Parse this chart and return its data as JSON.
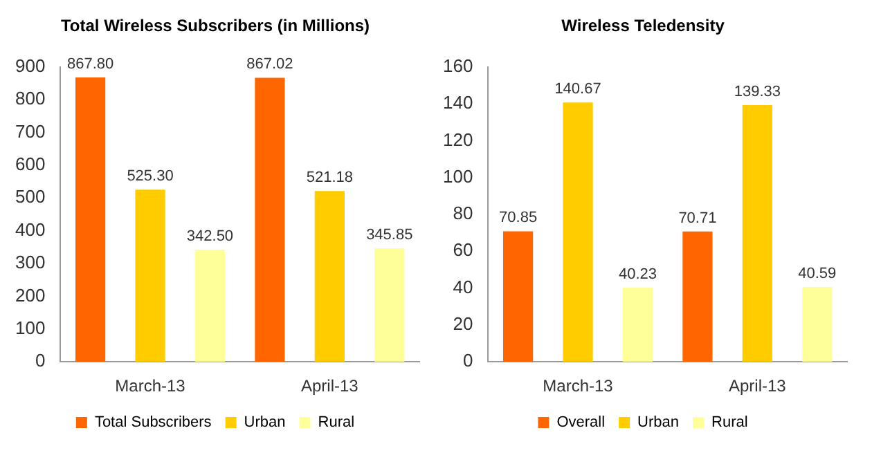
{
  "chart_data": [
    {
      "type": "bar",
      "title": "Total Wireless Subscribers (in Millions)",
      "categories": [
        "March-13",
        "April-13"
      ],
      "series": [
        {
          "name": "Total Subscribers",
          "color": "#ff6600",
          "values": [
            867.8,
            867.02
          ]
        },
        {
          "name": "Urban",
          "color": "#ffcc00",
          "values": [
            525.3,
            521.18
          ]
        },
        {
          "name": "Rural",
          "color": "#ffff99",
          "values": [
            342.5,
            345.85
          ]
        }
      ],
      "ylim": [
        0,
        900
      ],
      "yticks": [
        0,
        100,
        200,
        300,
        400,
        500,
        600,
        700,
        800,
        900
      ],
      "grid": false,
      "legend": "bottom",
      "value_labels": [
        [
          "867.80",
          "867.02"
        ],
        [
          "525.30",
          "521.18"
        ],
        [
          "342.50",
          "345.85"
        ]
      ]
    },
    {
      "type": "bar",
      "title": "Wireless Teledensity",
      "categories": [
        "March-13",
        "April-13"
      ],
      "series": [
        {
          "name": "Overall",
          "color": "#ff6600",
          "values": [
            70.85,
            70.71
          ]
        },
        {
          "name": "Urban",
          "color": "#ffcc00",
          "values": [
            140.67,
            139.33
          ]
        },
        {
          "name": "Rural",
          "color": "#ffff99",
          "values": [
            40.23,
            40.59
          ]
        }
      ],
      "ylim": [
        0,
        160
      ],
      "yticks": [
        0,
        20,
        40,
        60,
        80,
        100,
        120,
        140,
        160
      ],
      "grid": false,
      "legend": "bottom",
      "data_labels": true
    }
  ]
}
